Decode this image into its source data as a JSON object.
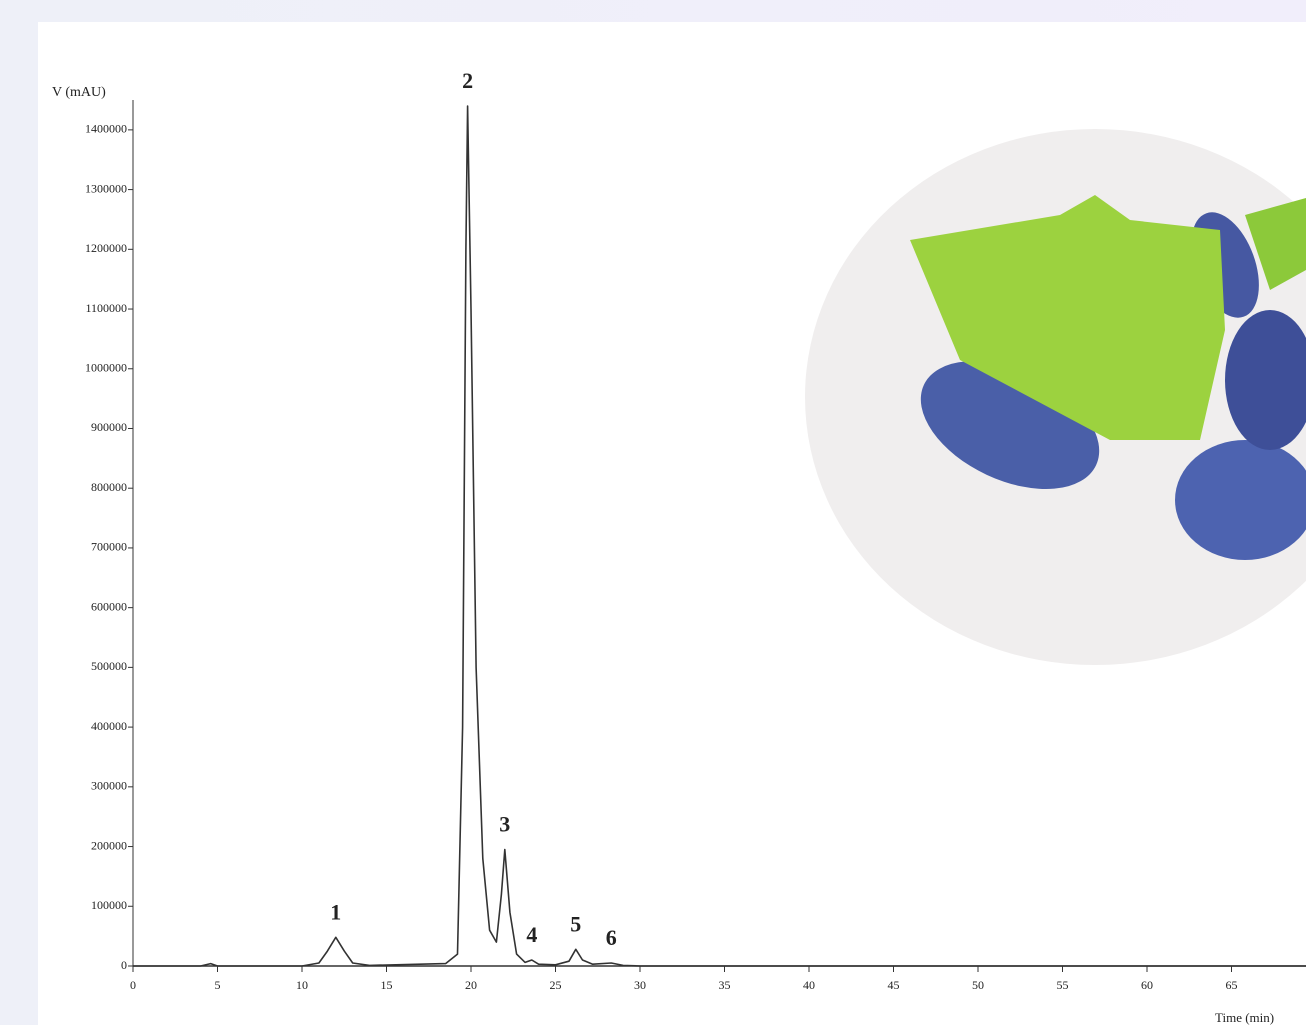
{
  "chart_data": {
    "type": "line",
    "y_label": "V (mAU)",
    "x_label": "Time (min)",
    "x": [
      0,
      4,
      4.6,
      5,
      10,
      11,
      11.5,
      12,
      12.5,
      13,
      14,
      17,
      18.5,
      19.2,
      19.5,
      19.7,
      19.8,
      20,
      20.3,
      20.7,
      21.1,
      21.5,
      21.8,
      22,
      22.3,
      22.7,
      23.2,
      23.6,
      24,
      25,
      25.8,
      26.2,
      26.6,
      27.2,
      28.3,
      29,
      30,
      70
    ],
    "series": [
      {
        "color": "#333333",
        "values": [
          0,
          0,
          4000,
          0,
          0,
          5000,
          25000,
          48000,
          25000,
          5000,
          1000,
          3000,
          4000,
          20000,
          400000,
          1200000,
          1440000,
          1100000,
          500000,
          180000,
          60000,
          40000,
          120000,
          195000,
          90000,
          20000,
          6000,
          10000,
          3000,
          2000,
          8000,
          28000,
          10000,
          3000,
          5000,
          1000,
          0,
          0
        ]
      }
    ],
    "annotations": [
      {
        "text": "1",
        "x": 12,
        "y": 48000
      },
      {
        "text": "2",
        "x": 19.8,
        "y": 1440000
      },
      {
        "text": "3",
        "x": 22,
        "y": 195000
      },
      {
        "text": "4",
        "x": 23.6,
        "y": 10000
      },
      {
        "text": "5",
        "x": 26.2,
        "y": 28000
      },
      {
        "text": "6",
        "x": 28.3,
        "y": 5000
      }
    ],
    "xlim": [
      0,
      70
    ],
    "ylim": [
      0,
      1450000
    ],
    "xticks": [
      0,
      5,
      10,
      15,
      20,
      25,
      30,
      35,
      40,
      45,
      50,
      55,
      60,
      65
    ],
    "yticks": [
      0,
      100000,
      200000,
      300000,
      400000,
      500000,
      600000,
      700000,
      800000,
      900000,
      1000000,
      1100000,
      1200000,
      1300000,
      1400000
    ]
  }
}
